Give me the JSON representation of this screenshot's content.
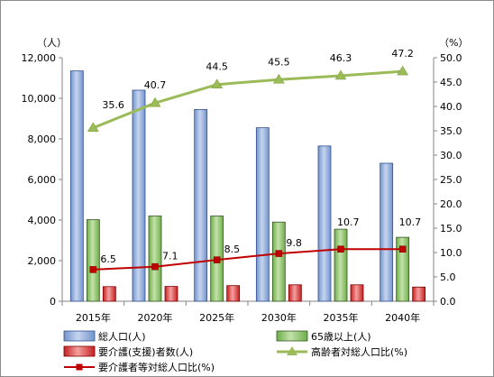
{
  "chart_data": {
    "type": "bar",
    "categories": [
      "2015年",
      "2020年",
      "2025年",
      "2030年",
      "2035年",
      "2040年"
    ],
    "left_axis": {
      "unit_label": "（人）",
      "ylim": [
        0,
        12000
      ],
      "ticks": [
        "0",
        "2,000",
        "4,000",
        "6,000",
        "8,000",
        "10,000",
        "12,000"
      ]
    },
    "right_axis": {
      "unit_label": "（%）",
      "ylim": [
        0,
        50
      ],
      "ticks": [
        "0.0",
        "5.0",
        "10.0",
        "15.0",
        "20.0",
        "25.0",
        "30.0",
        "35.0",
        "40.0",
        "45.0",
        "50.0"
      ]
    },
    "grid": false,
    "legend_position": "bottom",
    "series": [
      {
        "name": "総人口(人)",
        "kind": "bar",
        "axis": "left",
        "color": "#8eaadb",
        "values": [
          11350,
          10400,
          9450,
          8550,
          7650,
          6800
        ],
        "data_labels": []
      },
      {
        "name": "65歳以上(人)",
        "kind": "bar",
        "axis": "left",
        "color": "#8fc46e",
        "values": [
          4020,
          4200,
          4200,
          3900,
          3550,
          3150
        ],
        "data_labels": []
      },
      {
        "name": "要介護(支援)者数(人)",
        "kind": "bar",
        "axis": "left",
        "color": "#e05050",
        "values": [
          720,
          730,
          770,
          810,
          810,
          700
        ],
        "data_labels": []
      },
      {
        "name": "高齢者対総人口比(%)",
        "kind": "line",
        "axis": "right",
        "color": "#9bbb59",
        "values": [
          35.6,
          40.7,
          44.5,
          45.5,
          46.3,
          47.2
        ],
        "data_labels": [
          "35.6",
          "40.7",
          "44.5",
          "45.5",
          "46.3",
          "47.2"
        ]
      },
      {
        "name": "要介護者等対総人口比(%)",
        "kind": "line",
        "axis": "right",
        "color": "#c00000",
        "values": [
          6.5,
          7.1,
          8.5,
          9.8,
          10.7,
          10.7
        ],
        "data_labels": [
          "6.5",
          "7.1",
          "8.5",
          "9.8",
          "10.7",
          "10.7"
        ]
      }
    ]
  }
}
